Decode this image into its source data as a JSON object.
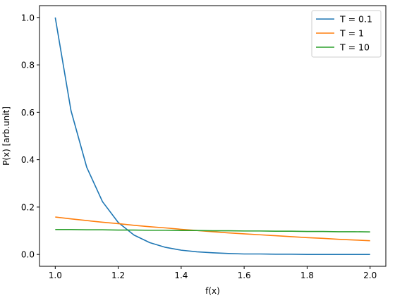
{
  "chart_data": {
    "type": "line",
    "title": "",
    "xlabel": "f(x)",
    "ylabel": "P(x) [arb.unit]",
    "xlim": [
      0.95,
      2.05
    ],
    "ylim": [
      -0.05,
      1.05
    ],
    "xticks": [
      1.0,
      1.2,
      1.4,
      1.6,
      1.8,
      2.0
    ],
    "xtick_labels": [
      "1.0",
      "1.2",
      "1.4",
      "1.6",
      "1.8",
      "2.0"
    ],
    "yticks": [
      0.0,
      0.2,
      0.4,
      0.6,
      0.8,
      1.0
    ],
    "ytick_labels": [
      "0.0",
      "0.2",
      "0.4",
      "0.6",
      "0.8",
      "1.0"
    ],
    "grid": false,
    "legend_position": "top-right",
    "x": [
      1.0,
      1.05,
      1.1,
      1.15,
      1.2,
      1.25,
      1.3,
      1.35,
      1.4,
      1.45,
      1.5,
      1.55,
      1.6,
      1.65,
      1.7,
      1.75,
      1.8,
      1.85,
      1.9,
      1.95,
      2.0
    ],
    "series": [
      {
        "name": "T = 0.1",
        "color": "#1f77b4",
        "values": [
          1.0,
          0.607,
          0.368,
          0.223,
          0.135,
          0.082,
          0.05,
          0.03,
          0.018,
          0.011,
          0.007,
          0.004,
          0.002,
          0.002,
          0.001,
          0.001,
          0.0,
          0.0,
          0.0,
          0.0,
          0.0
        ]
      },
      {
        "name": "T = 1",
        "color": "#ff7f0e",
        "values": [
          0.158,
          0.15,
          0.143,
          0.136,
          0.13,
          0.123,
          0.117,
          0.112,
          0.106,
          0.101,
          0.096,
          0.091,
          0.087,
          0.083,
          0.079,
          0.075,
          0.071,
          0.068,
          0.064,
          0.061,
          0.058
        ]
      },
      {
        "name": "T = 10",
        "color": "#2ca02c",
        "values": [
          0.105,
          0.105,
          0.104,
          0.104,
          0.103,
          0.103,
          0.102,
          0.102,
          0.101,
          0.101,
          0.1,
          0.1,
          0.099,
          0.099,
          0.098,
          0.098,
          0.097,
          0.097,
          0.096,
          0.096,
          0.095
        ]
      }
    ]
  }
}
